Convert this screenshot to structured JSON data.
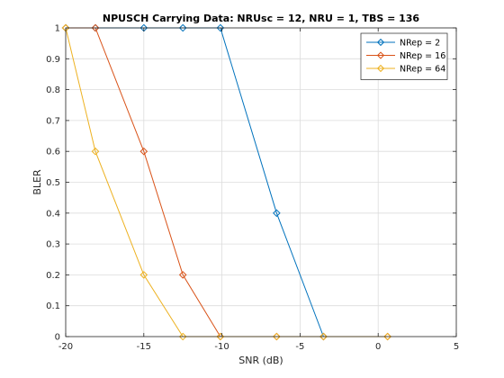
{
  "chart_data": {
    "type": "line",
    "title": "NPUSCH Carrying Data: NRUsc = 12, NRU = 1, TBS = 136",
    "xlabel": "SNR (dB)",
    "ylabel": "BLER",
    "xlim": [
      -20,
      5
    ],
    "ylim": [
      0,
      1
    ],
    "xticks": [
      -20,
      -15,
      -10,
      -5,
      0,
      5
    ],
    "yticks": [
      0,
      0.1,
      0.2,
      0.3,
      0.4,
      0.5,
      0.6,
      0.7,
      0.8,
      0.9,
      1
    ],
    "grid": true,
    "legend_position": "top-right",
    "series": [
      {
        "name": "NRep = 2",
        "color": "#0072BD",
        "marker": "diamond",
        "x": [
          -20,
          -18.1,
          -15,
          -12.5,
          -10.1,
          -6.5,
          -3.5
        ],
        "y": [
          1,
          1,
          1,
          1,
          1,
          0.4,
          0
        ]
      },
      {
        "name": "NRep = 16",
        "color": "#D95319",
        "marker": "diamond",
        "x": [
          -20,
          -18.1,
          -15,
          -12.5,
          -10.1,
          -6.5,
          -3.5,
          0.6
        ],
        "y": [
          1,
          1,
          0.6,
          0.2,
          0,
          0,
          0,
          0
        ]
      },
      {
        "name": "NRep = 64",
        "color": "#EDB120",
        "marker": "diamond",
        "x": [
          -20,
          -18.1,
          -15,
          -12.5,
          -10.1,
          -6.5,
          -3.5,
          0.6
        ],
        "y": [
          1,
          0.6,
          0.2,
          0,
          0,
          0,
          0,
          0
        ]
      }
    ]
  }
}
